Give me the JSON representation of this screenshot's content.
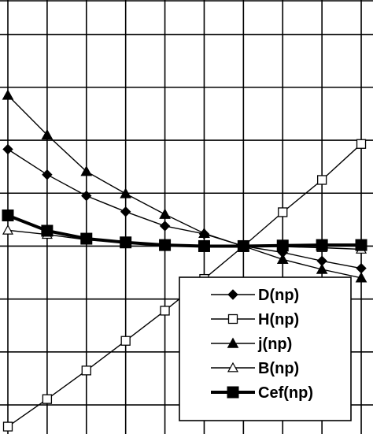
{
  "chart_data": {
    "type": "line",
    "title": "",
    "xlabel": "",
    "ylabel": "",
    "x": [
      0,
      1,
      2,
      3,
      4,
      5,
      6,
      7,
      8,
      9
    ],
    "xlim": [
      0,
      9.3
    ],
    "ylim": [
      -3.55,
      4.65
    ],
    "grid": true,
    "legend_position": "bottom-right",
    "series": [
      {
        "name": "D(np)",
        "marker": "diamond-filled",
        "line": "thin",
        "values": [
          1.83,
          1.35,
          0.95,
          0.65,
          0.38,
          0.23,
          0.0,
          -0.12,
          -0.28,
          -0.42
        ]
      },
      {
        "name": "H(np)",
        "marker": "square-open",
        "line": "thin",
        "values": [
          -3.41,
          -2.89,
          -2.35,
          -1.79,
          -1.22,
          -0.62,
          0.0,
          0.64,
          1.25,
          1.93
        ]
      },
      {
        "name": "j(np)",
        "marker": "triangle-filled",
        "line": "thin",
        "values": [
          2.85,
          2.1,
          1.41,
          0.99,
          0.6,
          0.24,
          0.0,
          -0.25,
          -0.44,
          -0.6
        ]
      },
      {
        "name": "B(np)",
        "marker": "triangle-open",
        "line": "thin",
        "values": [
          0.3,
          0.22,
          0.12,
          0.07,
          0.03,
          0.01,
          0.0,
          -0.01,
          -0.03,
          -0.06
        ]
      },
      {
        "name": "Cef(np)",
        "marker": "square-filled",
        "line": "thick",
        "values": [
          0.58,
          0.29,
          0.14,
          0.07,
          0.02,
          0.0,
          0.0,
          0.01,
          0.02,
          0.02
        ]
      }
    ]
  }
}
